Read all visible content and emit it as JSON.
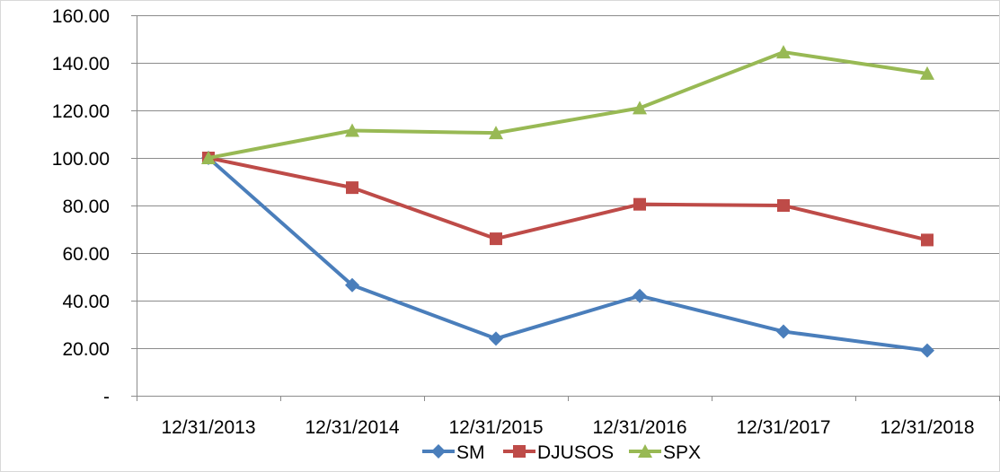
{
  "chart_data": {
    "type": "line",
    "categories": [
      "12/31/2013",
      "12/31/2014",
      "12/31/2015",
      "12/31/2016",
      "12/31/2017",
      "12/31/2018"
    ],
    "y_tick_labels": [
      "-",
      "20.00",
      "40.00",
      "60.00",
      "80.00",
      "100.00",
      "120.00",
      "140.00",
      "160.00"
    ],
    "y_ticks": [
      0,
      20,
      40,
      60,
      80,
      100,
      120,
      140,
      160
    ],
    "ylim": [
      0,
      160
    ],
    "grid": true,
    "legend_position": "bottom",
    "series": [
      {
        "name": "SM",
        "values": [
          100.0,
          46.5,
          24.0,
          42.0,
          27.0,
          19.0
        ],
        "color": "#4a7ebb",
        "marker": "diamond"
      },
      {
        "name": "DJUSOS",
        "values": [
          100.0,
          87.5,
          66.0,
          80.5,
          80.0,
          65.5
        ],
        "color": "#be4b48",
        "marker": "square"
      },
      {
        "name": "SPX",
        "values": [
          100.0,
          111.5,
          110.5,
          121.0,
          144.5,
          135.5
        ],
        "color": "#98b954",
        "marker": "triangle"
      }
    ]
  }
}
